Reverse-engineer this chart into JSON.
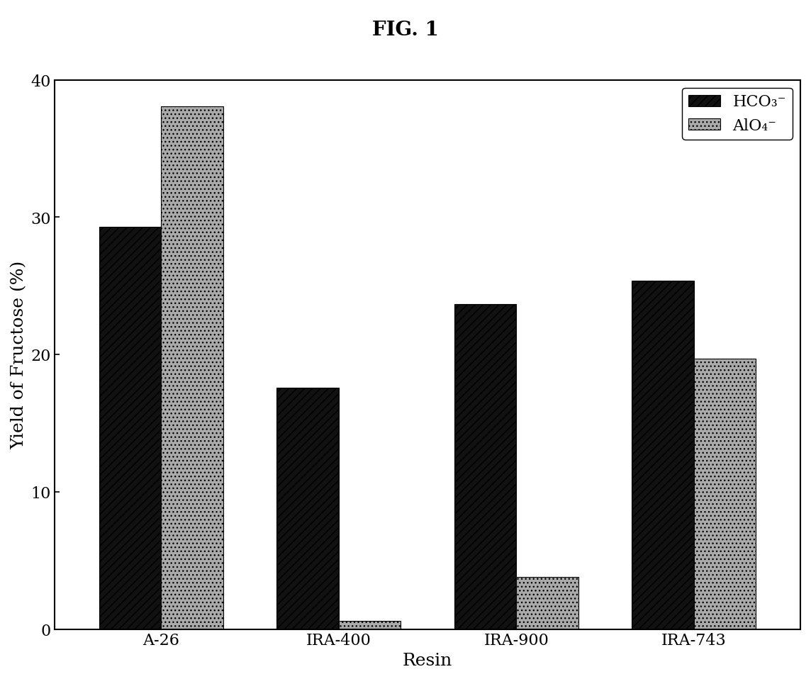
{
  "title": "FIG. 1",
  "categories": [
    "A-26",
    "IRA-400",
    "IRA-900",
    "IRA-743"
  ],
  "hco3_values": [
    29.3,
    17.6,
    23.7,
    25.4
  ],
  "aio4_values": [
    38.1,
    0.6,
    3.8,
    19.7
  ],
  "hco3_color": "#111111",
  "aio4_color": "#aaaaaa",
  "hco3_label": "HCO₃⁻",
  "aio4_label": "AlO₄⁻",
  "ylabel": "Yield of Fructose (%)",
  "xlabel": "Resin",
  "ylim": [
    0,
    40
  ],
  "yticks": [
    0,
    10,
    20,
    30,
    40
  ],
  "bar_width": 0.35,
  "title_fontsize": 20,
  "axis_label_fontsize": 18,
  "tick_fontsize": 16,
  "legend_fontsize": 16,
  "background_color": "#ffffff",
  "hatch_hco3": "///",
  "hatch_aio4": "..."
}
